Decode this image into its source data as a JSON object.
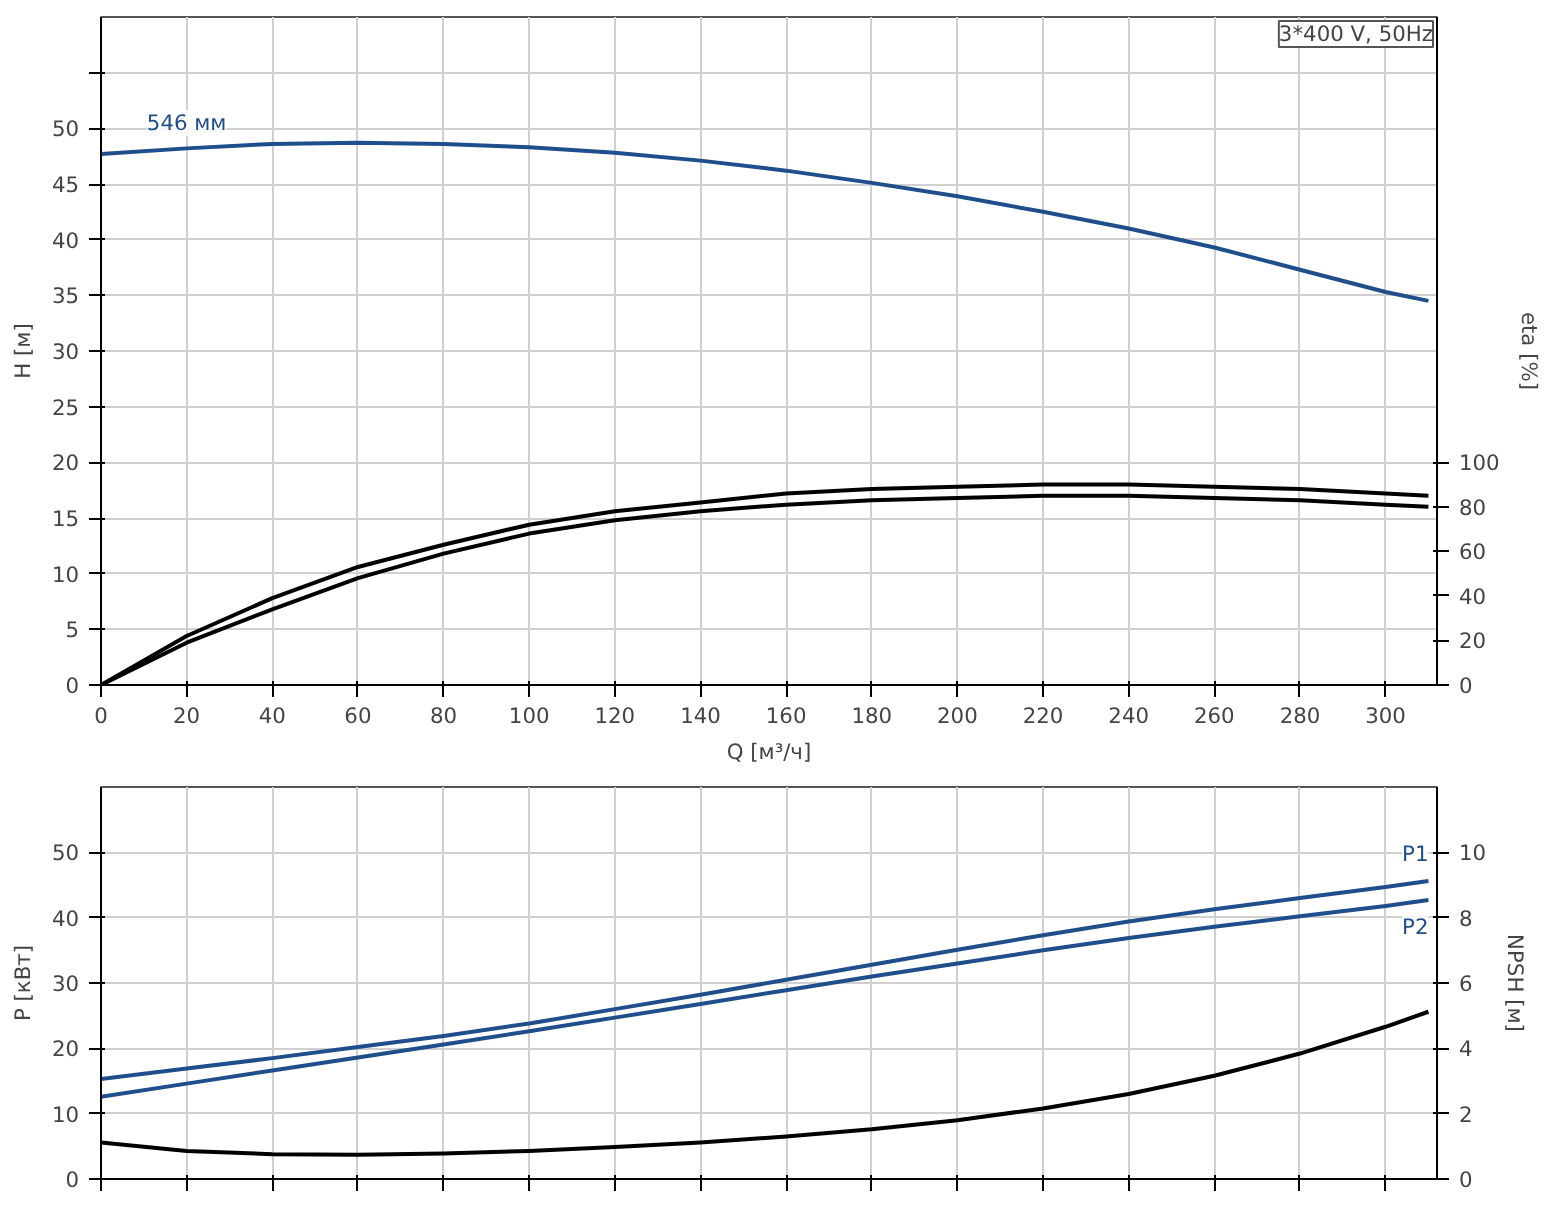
{
  "chart_data": [
    {
      "type": "line",
      "title": "3*400 V, 50Hz",
      "xlabel": "Q [м³/ч]",
      "ylabel": "H [м]",
      "y2label": "eta [%]",
      "x": [
        0,
        20,
        40,
        60,
        80,
        100,
        120,
        140,
        160,
        180,
        200,
        220,
        240,
        260,
        280,
        300,
        310
      ],
      "xlim": [
        0,
        312
      ],
      "xticks": [
        0,
        20,
        40,
        60,
        80,
        100,
        120,
        140,
        160,
        180,
        200,
        220,
        240,
        260,
        280,
        300
      ],
      "ylim": [
        0,
        60
      ],
      "yticks": [
        0,
        5,
        10,
        15,
        20,
        25,
        30,
        35,
        40,
        45,
        50,
        {
          "value": 55,
          "label": null
        }
      ],
      "y2lim": [
        0,
        300
      ],
      "y2ticks": [
        0,
        20,
        40,
        60,
        80,
        100
      ],
      "grid": true,
      "series": [
        {
          "name": "546 мм",
          "color": "#1f4e8c",
          "values": [
            47.7,
            48.2,
            48.6,
            48.7,
            48.6,
            48.3,
            47.8,
            47.1,
            46.2,
            45.1,
            43.9,
            42.5,
            41,
            39.3,
            37.3,
            35.3,
            34.5
          ]
        },
        {
          "color": "#000000",
          "axis": "y2",
          "values": [
            0,
            22,
            39,
            53,
            63,
            72,
            78,
            82,
            86,
            88,
            89,
            90,
            90,
            89,
            88,
            86,
            85
          ]
        },
        {
          "color": "#000000",
          "axis": "y2",
          "values": [
            0,
            19,
            34,
            48,
            59,
            68,
            74,
            78,
            81,
            83,
            84,
            85,
            85,
            84,
            83,
            81,
            80
          ]
        }
      ]
    },
    {
      "type": "line",
      "ylabel": "P [кВт]",
      "y2label": "NPSH [м]",
      "x": [
        0,
        20,
        40,
        60,
        80,
        100,
        120,
        140,
        160,
        180,
        200,
        220,
        240,
        260,
        280,
        300,
        310
      ],
      "xlim": [
        0,
        312
      ],
      "xticks": [
        0,
        20,
        40,
        60,
        80,
        100,
        120,
        140,
        160,
        180,
        200,
        220,
        240,
        260,
        280,
        300
      ],
      "ylim": [
        0,
        60
      ],
      "yticks": [
        0,
        10,
        20,
        30,
        40,
        50
      ],
      "y2lim": [
        0,
        12
      ],
      "y2ticks": [
        0,
        2,
        4,
        6,
        8,
        10
      ],
      "grid": true,
      "tick_labels": "y",
      "series": [
        {
          "name": "P1",
          "color": "#1f4e8c",
          "values": [
            15.3,
            16.9,
            18.5,
            20.2,
            21.9,
            23.8,
            26.0,
            28.2,
            30.5,
            32.8,
            35.1,
            37.3,
            39.4,
            41.3,
            43.0,
            44.7,
            45.6
          ]
        },
        {
          "name": "P2",
          "color": "#1f4e8c",
          "values": [
            12.6,
            14.6,
            16.6,
            18.6,
            20.6,
            22.6,
            24.7,
            26.8,
            28.9,
            31.0,
            33.0,
            35.0,
            36.9,
            38.6,
            40.2,
            41.8,
            42.7
          ]
        },
        {
          "color": "#000000",
          "axis": "y2",
          "values": [
            1.12,
            0.86,
            0.76,
            0.74,
            0.78,
            0.86,
            0.98,
            1.12,
            1.3,
            1.52,
            1.8,
            2.16,
            2.6,
            3.16,
            3.84,
            4.66,
            5.12
          ]
        }
      ]
    }
  ]
}
